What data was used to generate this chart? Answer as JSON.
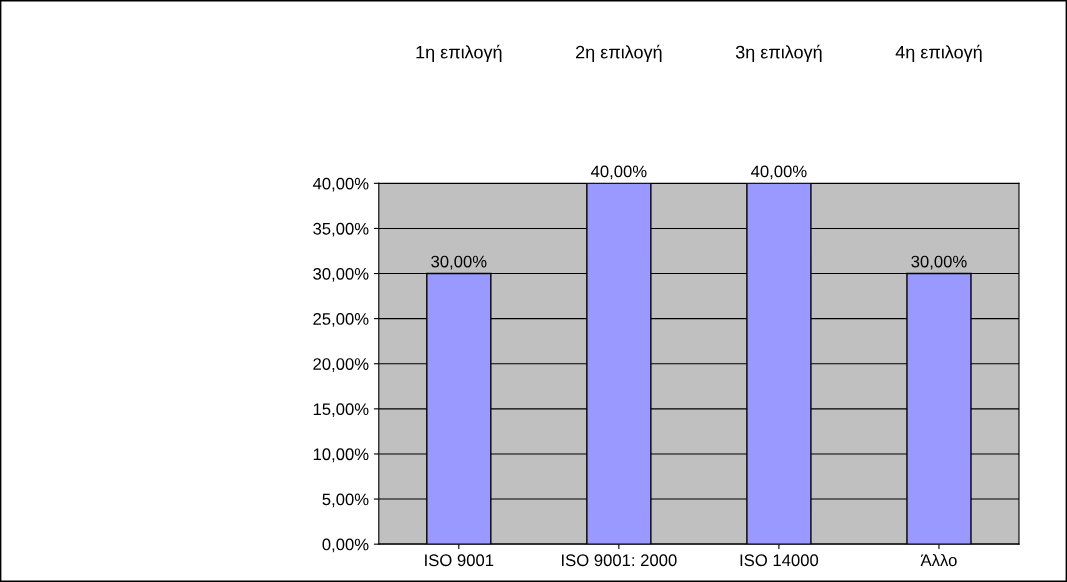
{
  "chart_data": {
    "type": "bar",
    "categories": [
      "ISO 9001",
      "ISO 9001: 2000",
      "ISO 14000",
      "Άλλο"
    ],
    "values": [
      30,
      40,
      40,
      30
    ],
    "value_labels": [
      "30,00%",
      "40,00%",
      "40,00%",
      "30,00%"
    ],
    "color": "#9999ff",
    "ylim": [
      0,
      40
    ],
    "yticks": [
      {
        "value": 0,
        "label": "0,00%"
      },
      {
        "value": 5,
        "label": "5,00%"
      },
      {
        "value": 10,
        "label": "10,00%"
      },
      {
        "value": 15,
        "label": "15,00%"
      },
      {
        "value": 20,
        "label": "20,00%"
      },
      {
        "value": 25,
        "label": "25,00%"
      },
      {
        "value": 30,
        "label": "30,00%"
      },
      {
        "value": 35,
        "label": "35,00%"
      },
      {
        "value": 40,
        "label": "40,00%"
      }
    ],
    "grid": "y",
    "annotations": [
      "1η επιλογή",
      "2η επιλογή",
      "3η επιλογή",
      "4η επιλογή"
    ]
  }
}
